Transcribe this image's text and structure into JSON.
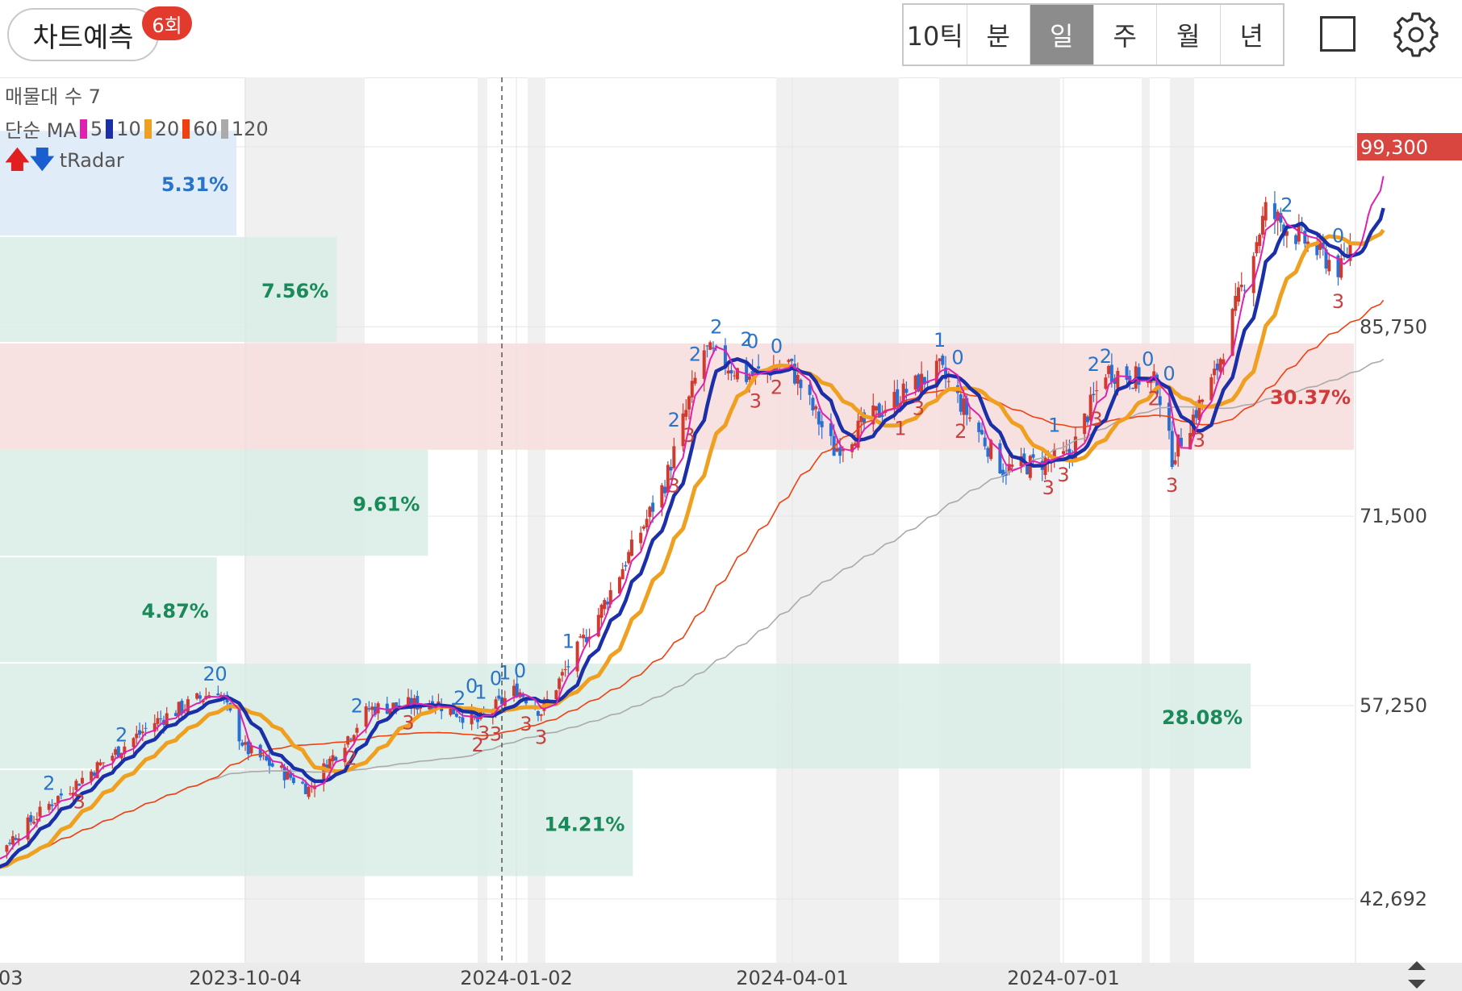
{
  "toolbar": {
    "predict_label": "차트예측",
    "predict_badge": "6회",
    "periods": [
      {
        "label": "10틱",
        "active": false
      },
      {
        "label": "분",
        "active": false
      },
      {
        "label": "일",
        "active": true
      },
      {
        "label": "주",
        "active": false
      },
      {
        "label": "월",
        "active": false
      },
      {
        "label": "년",
        "active": false
      }
    ]
  },
  "legend": {
    "volume_profile_label": "매물대 수 7",
    "ma_label": "단순 MA",
    "ma": [
      {
        "period": "5",
        "color": "#e020b0"
      },
      {
        "period": "10",
        "color": "#1a2fa8"
      },
      {
        "period": "20",
        "color": "#f0a020"
      },
      {
        "period": "60",
        "color": "#f04010"
      },
      {
        "period": "120",
        "color": "#aaaaaa"
      }
    ],
    "radar_label": "tRadar"
  },
  "chart_data": {
    "type": "candlestick",
    "interval": "daily",
    "y_axis": {
      "ticks": [
        42692,
        57250,
        71500,
        85750,
        99300
      ],
      "tick_labels": [
        "42,692",
        "57,250",
        "71,500",
        "85,750",
        "99,300"
      ],
      "range": [
        38500,
        104000
      ]
    },
    "x_axis": {
      "ticks": [
        "03",
        "2023-10-04",
        "2024-01-02",
        "2024-04-01",
        "2024-07-01"
      ]
    },
    "current_price": {
      "value": 99300,
      "label": "99,300",
      "color": "#d9463f"
    },
    "volume_profile": [
      {
        "low": 92500,
        "high": 100500,
        "label": "5.31%",
        "color": "#dce9f8",
        "label_color": "#2a74c8",
        "highlight": "current"
      },
      {
        "low": 84500,
        "high": 92500,
        "label": "7.56%",
        "color": "#d9ece5",
        "label_color": "#1a8a5a"
      },
      {
        "low": 76500,
        "high": 84500,
        "label": "30.37%",
        "color": "#f7dede",
        "label_color": "#d03a3a",
        "highlight": "max"
      },
      {
        "low": 68400,
        "high": 76500,
        "label": "9.61%",
        "color": "#d9ece5",
        "label_color": "#1a8a5a"
      },
      {
        "low": 60400,
        "high": 68400,
        "label": "4.87%",
        "color": "#d9ece5",
        "label_color": "#1a8a5a"
      },
      {
        "low": 52400,
        "high": 60400,
        "label": "28.08%",
        "color": "#d9ece5",
        "label_color": "#1a8a5a"
      },
      {
        "low": 44300,
        "high": 52400,
        "label": "14.21%",
        "color": "#d9ece5",
        "label_color": "#1a8a5a"
      }
    ],
    "ohlc_close_waypoints": [
      {
        "date": "2023-07-03",
        "close": 44000
      },
      {
        "date": "2023-08-01",
        "close": 50000
      },
      {
        "date": "2023-09-04",
        "close": 56000
      },
      {
        "date": "2023-09-25",
        "close": 58500
      },
      {
        "date": "2023-10-04",
        "close": 54000
      },
      {
        "date": "2023-10-25",
        "close": 51000
      },
      {
        "date": "2023-11-14",
        "close": 57000
      },
      {
        "date": "2023-12-06",
        "close": 57500
      },
      {
        "date": "2023-12-20",
        "close": 56000
      },
      {
        "date": "2024-01-02",
        "close": 58500
      },
      {
        "date": "2024-01-10",
        "close": 56800
      },
      {
        "date": "2024-01-30",
        "close": 64500
      },
      {
        "date": "2024-02-20",
        "close": 74000
      },
      {
        "date": "2024-03-04",
        "close": 84000
      },
      {
        "date": "2024-03-18",
        "close": 82000
      },
      {
        "date": "2024-04-01",
        "close": 83000
      },
      {
        "date": "2024-04-16",
        "close": 76500
      },
      {
        "date": "2024-05-07",
        "close": 80500
      },
      {
        "date": "2024-05-21",
        "close": 82500
      },
      {
        "date": "2024-06-11",
        "close": 75000
      },
      {
        "date": "2024-07-03",
        "close": 76000
      },
      {
        "date": "2024-07-15",
        "close": 82500
      },
      {
        "date": "2024-08-01",
        "close": 81500
      },
      {
        "date": "2024-08-06",
        "close": 76000
      },
      {
        "date": "2024-08-20",
        "close": 82000
      },
      {
        "date": "2024-09-06",
        "close": 94500
      },
      {
        "date": "2024-09-20",
        "close": 92000
      },
      {
        "date": "2024-10-01",
        "close": 90000
      },
      {
        "date": "2024-10-15",
        "close": 99300
      }
    ],
    "trend_markers": [
      {
        "date": "2023-07-31",
        "label": "2",
        "kind": "peak"
      },
      {
        "date": "2023-08-24",
        "label": "2",
        "kind": "peak"
      },
      {
        "date": "2023-09-22",
        "label": "2",
        "kind": "peak"
      },
      {
        "date": "2023-09-26",
        "label": "0",
        "kind": "peak"
      },
      {
        "date": "2023-11-10",
        "label": "2",
        "kind": "peak"
      },
      {
        "date": "2023-12-14",
        "label": "2",
        "kind": "peak"
      },
      {
        "date": "2023-12-18",
        "label": "0",
        "kind": "peak"
      },
      {
        "date": "2023-12-21",
        "label": "1",
        "kind": "peak"
      },
      {
        "date": "2023-12-26",
        "label": "0",
        "kind": "peak"
      },
      {
        "date": "2023-12-29",
        "label": "1",
        "kind": "peak"
      },
      {
        "date": "2024-01-03",
        "label": "0",
        "kind": "peak"
      },
      {
        "date": "2024-01-19",
        "label": "1",
        "kind": "peak"
      },
      {
        "date": "2024-02-23",
        "label": "2",
        "kind": "peak"
      },
      {
        "date": "2024-03-01",
        "label": "2",
        "kind": "peak"
      },
      {
        "date": "2024-03-08",
        "label": "2",
        "kind": "peak"
      },
      {
        "date": "2024-03-18",
        "label": "2",
        "kind": "peak"
      },
      {
        "date": "2024-03-20",
        "label": "0",
        "kind": "peak"
      },
      {
        "date": "2024-03-28",
        "label": "0",
        "kind": "peak"
      },
      {
        "date": "2024-05-21",
        "label": "1",
        "kind": "peak"
      },
      {
        "date": "2024-05-27",
        "label": "0",
        "kind": "peak"
      },
      {
        "date": "2024-06-28",
        "label": "1",
        "kind": "peak"
      },
      {
        "date": "2024-07-11",
        "label": "2",
        "kind": "peak"
      },
      {
        "date": "2024-07-15",
        "label": "2",
        "kind": "peak"
      },
      {
        "date": "2024-07-29",
        "label": "0",
        "kind": "peak"
      },
      {
        "date": "2024-08-05",
        "label": "0",
        "kind": "peak"
      },
      {
        "date": "2024-09-13",
        "label": "2",
        "kind": "peak"
      },
      {
        "date": "2024-09-30",
        "label": "0",
        "kind": "peak"
      },
      {
        "date": "2023-07-03",
        "label": "3",
        "kind": "trough"
      },
      {
        "date": "2023-08-10",
        "label": "3",
        "kind": "trough"
      },
      {
        "date": "2023-11-08",
        "label": "2",
        "kind": "trough"
      },
      {
        "date": "2023-11-27",
        "label": "3",
        "kind": "trough"
      },
      {
        "date": "2023-12-20",
        "label": "2",
        "kind": "trough"
      },
      {
        "date": "2023-12-22",
        "label": "3",
        "kind": "trough"
      },
      {
        "date": "2023-12-26",
        "label": "3",
        "kind": "trough"
      },
      {
        "date": "2024-01-05",
        "label": "3",
        "kind": "trough"
      },
      {
        "date": "2024-01-10",
        "label": "3",
        "kind": "trough"
      },
      {
        "date": "2024-02-23",
        "label": "3",
        "kind": "trough"
      },
      {
        "date": "2024-02-28",
        "label": "3",
        "kind": "trough"
      },
      {
        "date": "2024-03-21",
        "label": "3",
        "kind": "trough"
      },
      {
        "date": "2024-03-28",
        "label": "2",
        "kind": "trough"
      },
      {
        "date": "2024-05-08",
        "label": "1",
        "kind": "trough"
      },
      {
        "date": "2024-05-14",
        "label": "3",
        "kind": "trough"
      },
      {
        "date": "2024-05-28",
        "label": "2",
        "kind": "trough"
      },
      {
        "date": "2024-06-26",
        "label": "3",
        "kind": "trough"
      },
      {
        "date": "2024-07-01",
        "label": "3",
        "kind": "trough"
      },
      {
        "date": "2024-07-12",
        "label": "3",
        "kind": "trough"
      },
      {
        "date": "2024-07-31",
        "label": "2",
        "kind": "trough"
      },
      {
        "date": "2024-08-06",
        "label": "3",
        "kind": "trough"
      },
      {
        "date": "2024-08-15",
        "label": "3",
        "kind": "trough"
      },
      {
        "date": "2024-09-30",
        "label": "3",
        "kind": "trough"
      }
    ],
    "cursor_date": "2023-12-28",
    "grid": true
  }
}
